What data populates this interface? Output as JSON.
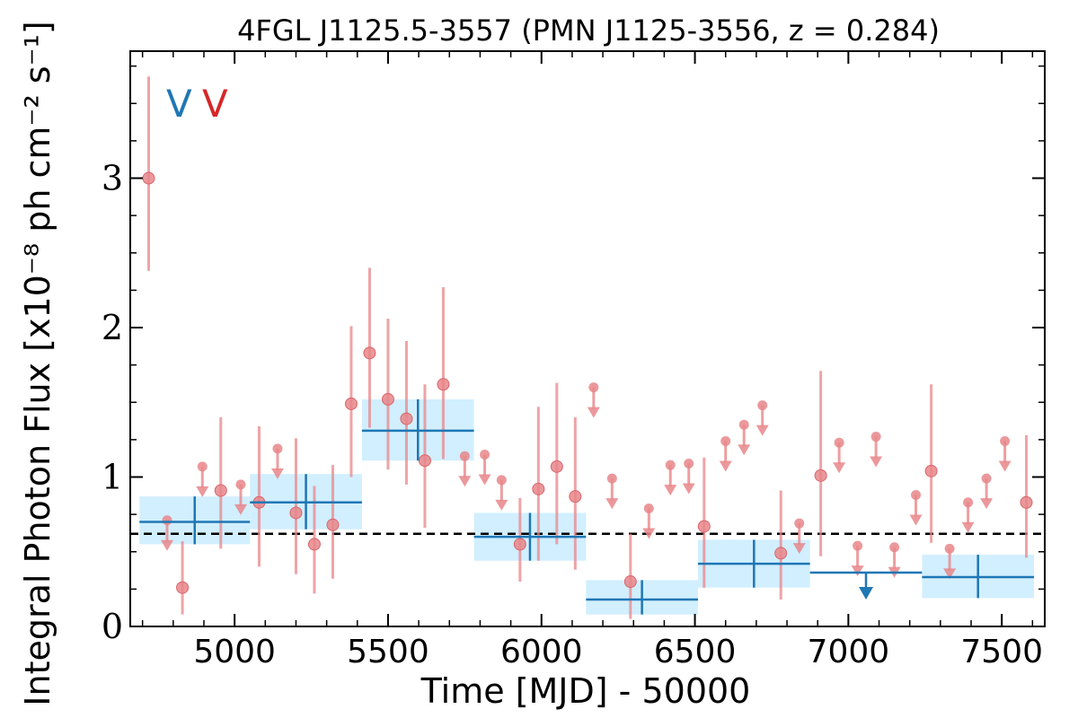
{
  "chart_data": {
    "type": "scatter",
    "title": "4FGL J1125.5-3557 (PMN J1125-3556, z = 0.284)",
    "xlabel": "Time [MJD] - 50000",
    "ylabel": "Integral Photon Flux [x10⁻⁸ ph cm⁻² s⁻¹]",
    "xlim": [
      4660,
      7640
    ],
    "ylim": [
      0,
      3.85
    ],
    "xticks": [
      5000,
      5500,
      6000,
      6500,
      7000,
      7500
    ],
    "yticks": [
      0,
      1,
      2,
      3
    ],
    "xtick_labels": [
      "5000",
      "5500",
      "6000",
      "6500",
      "7000",
      "7500"
    ],
    "ytick_labels": [
      "0",
      "1",
      "2",
      "3"
    ],
    "markers": [
      {
        "label": "V",
        "color": "#1f77b4"
      },
      {
        "label": "V",
        "color": "#d62728"
      }
    ],
    "average_flux": 0.62,
    "colors": {
      "short_bins": "#e8868a",
      "long_bins": "#1f77b4",
      "long_band": "#cfeeff",
      "average_line": "#000000"
    },
    "series": [
      {
        "points": [
          {
            "x": 4720,
            "y": 3.0,
            "ylo": 2.38,
            "yhi": 3.68
          },
          {
            "x": 4830,
            "y": 0.26,
            "ylo": 0.08,
            "yhi": 0.57
          },
          {
            "x": 4955,
            "y": 0.91,
            "ylo": 0.52,
            "yhi": 1.4
          },
          {
            "x": 5080,
            "y": 0.83,
            "ylo": 0.4,
            "yhi": 1.34
          },
          {
            "x": 5200,
            "y": 0.76,
            "ylo": 0.35,
            "yhi": 1.26
          },
          {
            "x": 5260,
            "y": 0.55,
            "ylo": 0.22,
            "yhi": 0.94
          },
          {
            "x": 5320,
            "y": 0.68,
            "ylo": 0.32,
            "yhi": 1.08
          },
          {
            "x": 5380,
            "y": 1.49,
            "ylo": 1.0,
            "yhi": 2.01
          },
          {
            "x": 5440,
            "y": 1.83,
            "ylo": 1.33,
            "yhi": 2.4
          },
          {
            "x": 5500,
            "y": 1.52,
            "ylo": 1.05,
            "yhi": 2.06
          },
          {
            "x": 5560,
            "y": 1.39,
            "ylo": 0.95,
            "yhi": 1.91
          },
          {
            "x": 5620,
            "y": 1.11,
            "ylo": 0.66,
            "yhi": 1.62
          },
          {
            "x": 5680,
            "y": 1.62,
            "ylo": 1.12,
            "yhi": 2.27
          },
          {
            "x": 5930,
            "y": 0.55,
            "ylo": 0.3,
            "yhi": 0.86
          },
          {
            "x": 5990,
            "y": 0.92,
            "ylo": 0.44,
            "yhi": 1.47
          },
          {
            "x": 6050,
            "y": 1.07,
            "ylo": 0.55,
            "yhi": 1.63
          },
          {
            "x": 6110,
            "y": 0.87,
            "ylo": 0.38,
            "yhi": 1.4
          },
          {
            "x": 6290,
            "y": 0.3,
            "ylo": 0.05,
            "yhi": 0.62
          },
          {
            "x": 6530,
            "y": 0.67,
            "ylo": 0.26,
            "yhi": 1.13
          },
          {
            "x": 6780,
            "y": 0.49,
            "ylo": 0.18,
            "yhi": 0.91
          },
          {
            "x": 6910,
            "y": 1.01,
            "ylo": 0.47,
            "yhi": 1.71
          },
          {
            "x": 7270,
            "y": 1.04,
            "ylo": 0.56,
            "yhi": 1.62
          },
          {
            "x": 7580,
            "y": 0.83,
            "ylo": 0.46,
            "yhi": 1.28
          }
        ],
        "upper_limits": [
          {
            "x": 4780,
            "y": 0.71
          },
          {
            "x": 4895,
            "y": 1.07
          },
          {
            "x": 5020,
            "y": 0.95
          },
          {
            "x": 5140,
            "y": 1.19
          },
          {
            "x": 5750,
            "y": 1.14
          },
          {
            "x": 5815,
            "y": 1.15
          },
          {
            "x": 5870,
            "y": 0.98
          },
          {
            "x": 6170,
            "y": 1.6
          },
          {
            "x": 6230,
            "y": 0.99
          },
          {
            "x": 6350,
            "y": 0.79
          },
          {
            "x": 6420,
            "y": 1.08
          },
          {
            "x": 6480,
            "y": 1.09
          },
          {
            "x": 6600,
            "y": 1.24
          },
          {
            "x": 6660,
            "y": 1.35
          },
          {
            "x": 6720,
            "y": 1.48
          },
          {
            "x": 6840,
            "y": 0.69
          },
          {
            "x": 6970,
            "y": 1.23
          },
          {
            "x": 7030,
            "y": 0.54
          },
          {
            "x": 7090,
            "y": 1.27
          },
          {
            "x": 7150,
            "y": 0.53
          },
          {
            "x": 7220,
            "y": 0.88
          },
          {
            "x": 7330,
            "y": 0.52
          },
          {
            "x": 7390,
            "y": 0.83
          },
          {
            "x": 7450,
            "y": 0.99
          },
          {
            "x": 7510,
            "y": 1.24
          }
        ]
      },
      {
        "bins": [
          {
            "x0": 4690,
            "x1": 5050,
            "y": 0.7,
            "ylo": 0.55,
            "yhi": 0.87
          },
          {
            "x0": 5050,
            "x1": 5415,
            "y": 0.83,
            "ylo": 0.65,
            "yhi": 1.02
          },
          {
            "x0": 5415,
            "x1": 5780,
            "y": 1.31,
            "ylo": 1.11,
            "yhi": 1.52
          },
          {
            "x0": 5780,
            "x1": 6145,
            "y": 0.6,
            "ylo": 0.44,
            "yhi": 0.76
          },
          {
            "x0": 6145,
            "x1": 6510,
            "y": 0.18,
            "ylo": 0.08,
            "yhi": 0.31
          },
          {
            "x0": 6510,
            "x1": 6875,
            "y": 0.42,
            "ylo": 0.26,
            "yhi": 0.58
          }
        ],
        "upper_limit_bins": [
          {
            "x0": 6875,
            "x1": 7240,
            "y": 0.36
          }
        ],
        "bins_tail": [
          {
            "x0": 7240,
            "x1": 7605,
            "y": 0.33,
            "ylo": 0.19,
            "yhi": 0.48
          }
        ]
      }
    ]
  }
}
